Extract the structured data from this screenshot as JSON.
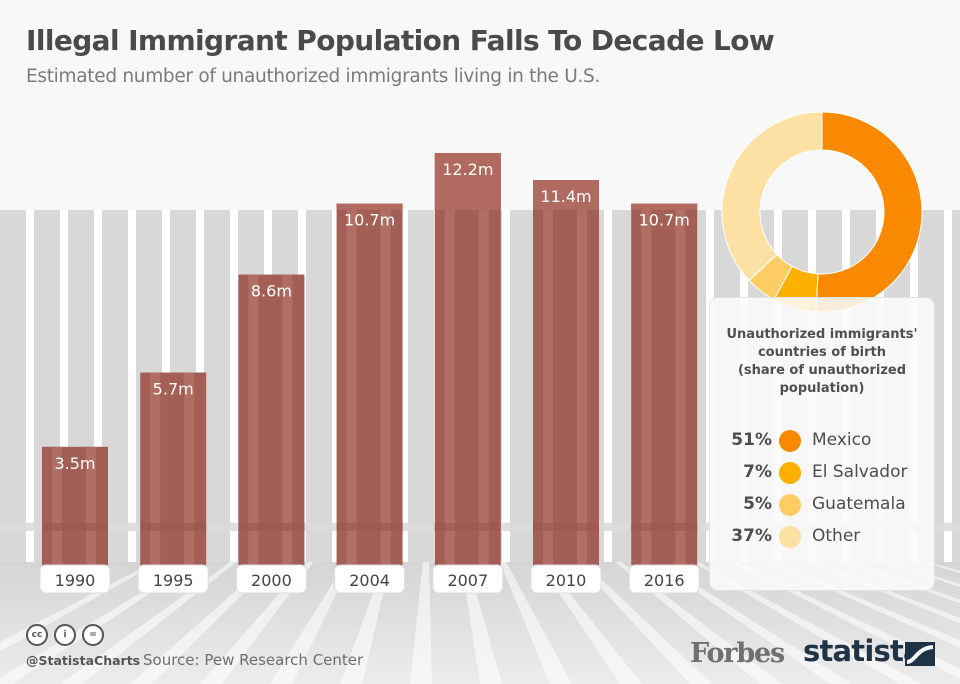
{
  "header": {
    "title": "Illegal Immigrant Population Falls To Decade Low",
    "subtitle": "Estimated number of unauthorized immigrants living in the U.S."
  },
  "colors": {
    "bar": "#a35f55",
    "bar_stripe": "#b7766b",
    "bar_top": "#b06a60",
    "fence": "#d8d8d8",
    "background": "#f8f8f8",
    "donut": [
      "#f98a00",
      "#fdb000",
      "#fdcc63",
      "#fde0a3"
    ]
  },
  "chart_data": [
    {
      "type": "bar",
      "title": "Illegal Immigrant Population Falls To Decade Low",
      "subtitle": "Estimated number of unauthorized immigrants living in the U.S.",
      "xlabel": "",
      "ylabel": "",
      "unit": "millions",
      "categories": [
        "1990",
        "1995",
        "2000",
        "2004",
        "2007",
        "2010",
        "2016"
      ],
      "values": [
        3.5,
        5.7,
        8.6,
        10.7,
        12.2,
        11.4,
        10.7
      ],
      "data_labels": [
        "3.5m",
        "5.7m",
        "8.6m",
        "10.7m",
        "12.2m",
        "11.4m",
        "10.7m"
      ],
      "ylim": [
        0,
        12.2
      ],
      "grid": false,
      "legend": "none"
    },
    {
      "type": "pie",
      "variant": "donut",
      "title": "Unauthorized immigrants' countries of birth (share of unauthorized population)",
      "title_lines": [
        "Unauthorized immigrants'",
        "countries of birth",
        "(share of unauthorized",
        "population)"
      ],
      "categories": [
        "Mexico",
        "El Salvador",
        "Guatemala",
        "Other"
      ],
      "values": [
        51,
        7,
        5,
        37
      ],
      "value_labels": [
        "51%",
        "7%",
        "5%",
        "37%"
      ],
      "unit": "percent",
      "legend": "bottom-right"
    }
  ],
  "footer": {
    "handle": "@StatistaCharts",
    "source": "Source: Pew Research Center",
    "license_icons": [
      "cc-icon",
      "attribution-icon",
      "no-derivatives-icon"
    ],
    "license_glyphs": [
      "cc",
      "i",
      "="
    ],
    "brand_forbes": "Forbes",
    "brand_statista": "statista"
  }
}
